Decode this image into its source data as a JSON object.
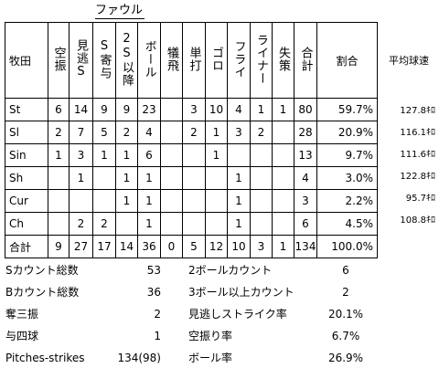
{
  "foul_group_label": "ファウル",
  "table": {
    "corner": "牧田",
    "headers": [
      "空振",
      "見逃S",
      "S寄与",
      "2S以降",
      "ボール",
      "犠飛",
      "単打",
      "ゴロ",
      "フライ",
      "ライナー",
      "失策",
      "合計",
      "割合"
    ],
    "speed_header": "平均球速",
    "rows": [
      {
        "name": "St",
        "cells": [
          "6",
          "14",
          "9",
          "9",
          "23",
          "",
          "3",
          "10",
          "4",
          "1",
          "1",
          "80",
          "59.7%"
        ],
        "speed": "127.8ｷﾛ"
      },
      {
        "name": "Sl",
        "cells": [
          "2",
          "7",
          "5",
          "2",
          "4",
          "",
          "2",
          "1",
          "3",
          "2",
          "",
          "28",
          "20.9%"
        ],
        "speed": "116.1ｷﾛ"
      },
      {
        "name": "Sin",
        "cells": [
          "1",
          "3",
          "1",
          "1",
          "6",
          "",
          "",
          "1",
          "",
          "",
          "",
          "13",
          "9.7%"
        ],
        "speed": "111.6ｷﾛ"
      },
      {
        "name": "Sh",
        "cells": [
          "",
          "1",
          "",
          "1",
          "1",
          "",
          "",
          "",
          "1",
          "",
          "",
          "4",
          "3.0%"
        ],
        "speed": "122.8ｷﾛ"
      },
      {
        "name": "Cur",
        "cells": [
          "",
          "",
          "",
          "1",
          "1",
          "",
          "",
          "",
          "1",
          "",
          "",
          "3",
          "2.2%"
        ],
        "speed": "95.7ｷﾛ"
      },
      {
        "name": "Ch",
        "cells": [
          "",
          "2",
          "2",
          "",
          "1",
          "",
          "",
          "",
          "1",
          "",
          "",
          "6",
          "4.5%"
        ],
        "speed": "108.8ｷﾛ"
      },
      {
        "name": "合計",
        "cells": [
          "9",
          "27",
          "17",
          "14",
          "36",
          "0",
          "5",
          "12",
          "10",
          "3",
          "1",
          "134",
          "100.0%"
        ],
        "speed": ""
      }
    ]
  },
  "stats_left": [
    {
      "label": "Sカウント総数",
      "value": "53"
    },
    {
      "label": "Bカウント総数",
      "value": "36"
    },
    {
      "label": "奪三振",
      "value": "2"
    },
    {
      "label": "与四球",
      "value": "1"
    },
    {
      "label": "Pitches-strikes",
      "value": "134(98)"
    }
  ],
  "stats_right": [
    {
      "label": "2ボールカウント",
      "value": "6"
    },
    {
      "label": "3ボール以上カウント",
      "value": "2"
    },
    {
      "label": "見逃しストライク率",
      "value": "20.1%"
    },
    {
      "label": "空振り率",
      "value": "6.7%"
    },
    {
      "label": "ボール率",
      "value": "26.9%"
    }
  ]
}
